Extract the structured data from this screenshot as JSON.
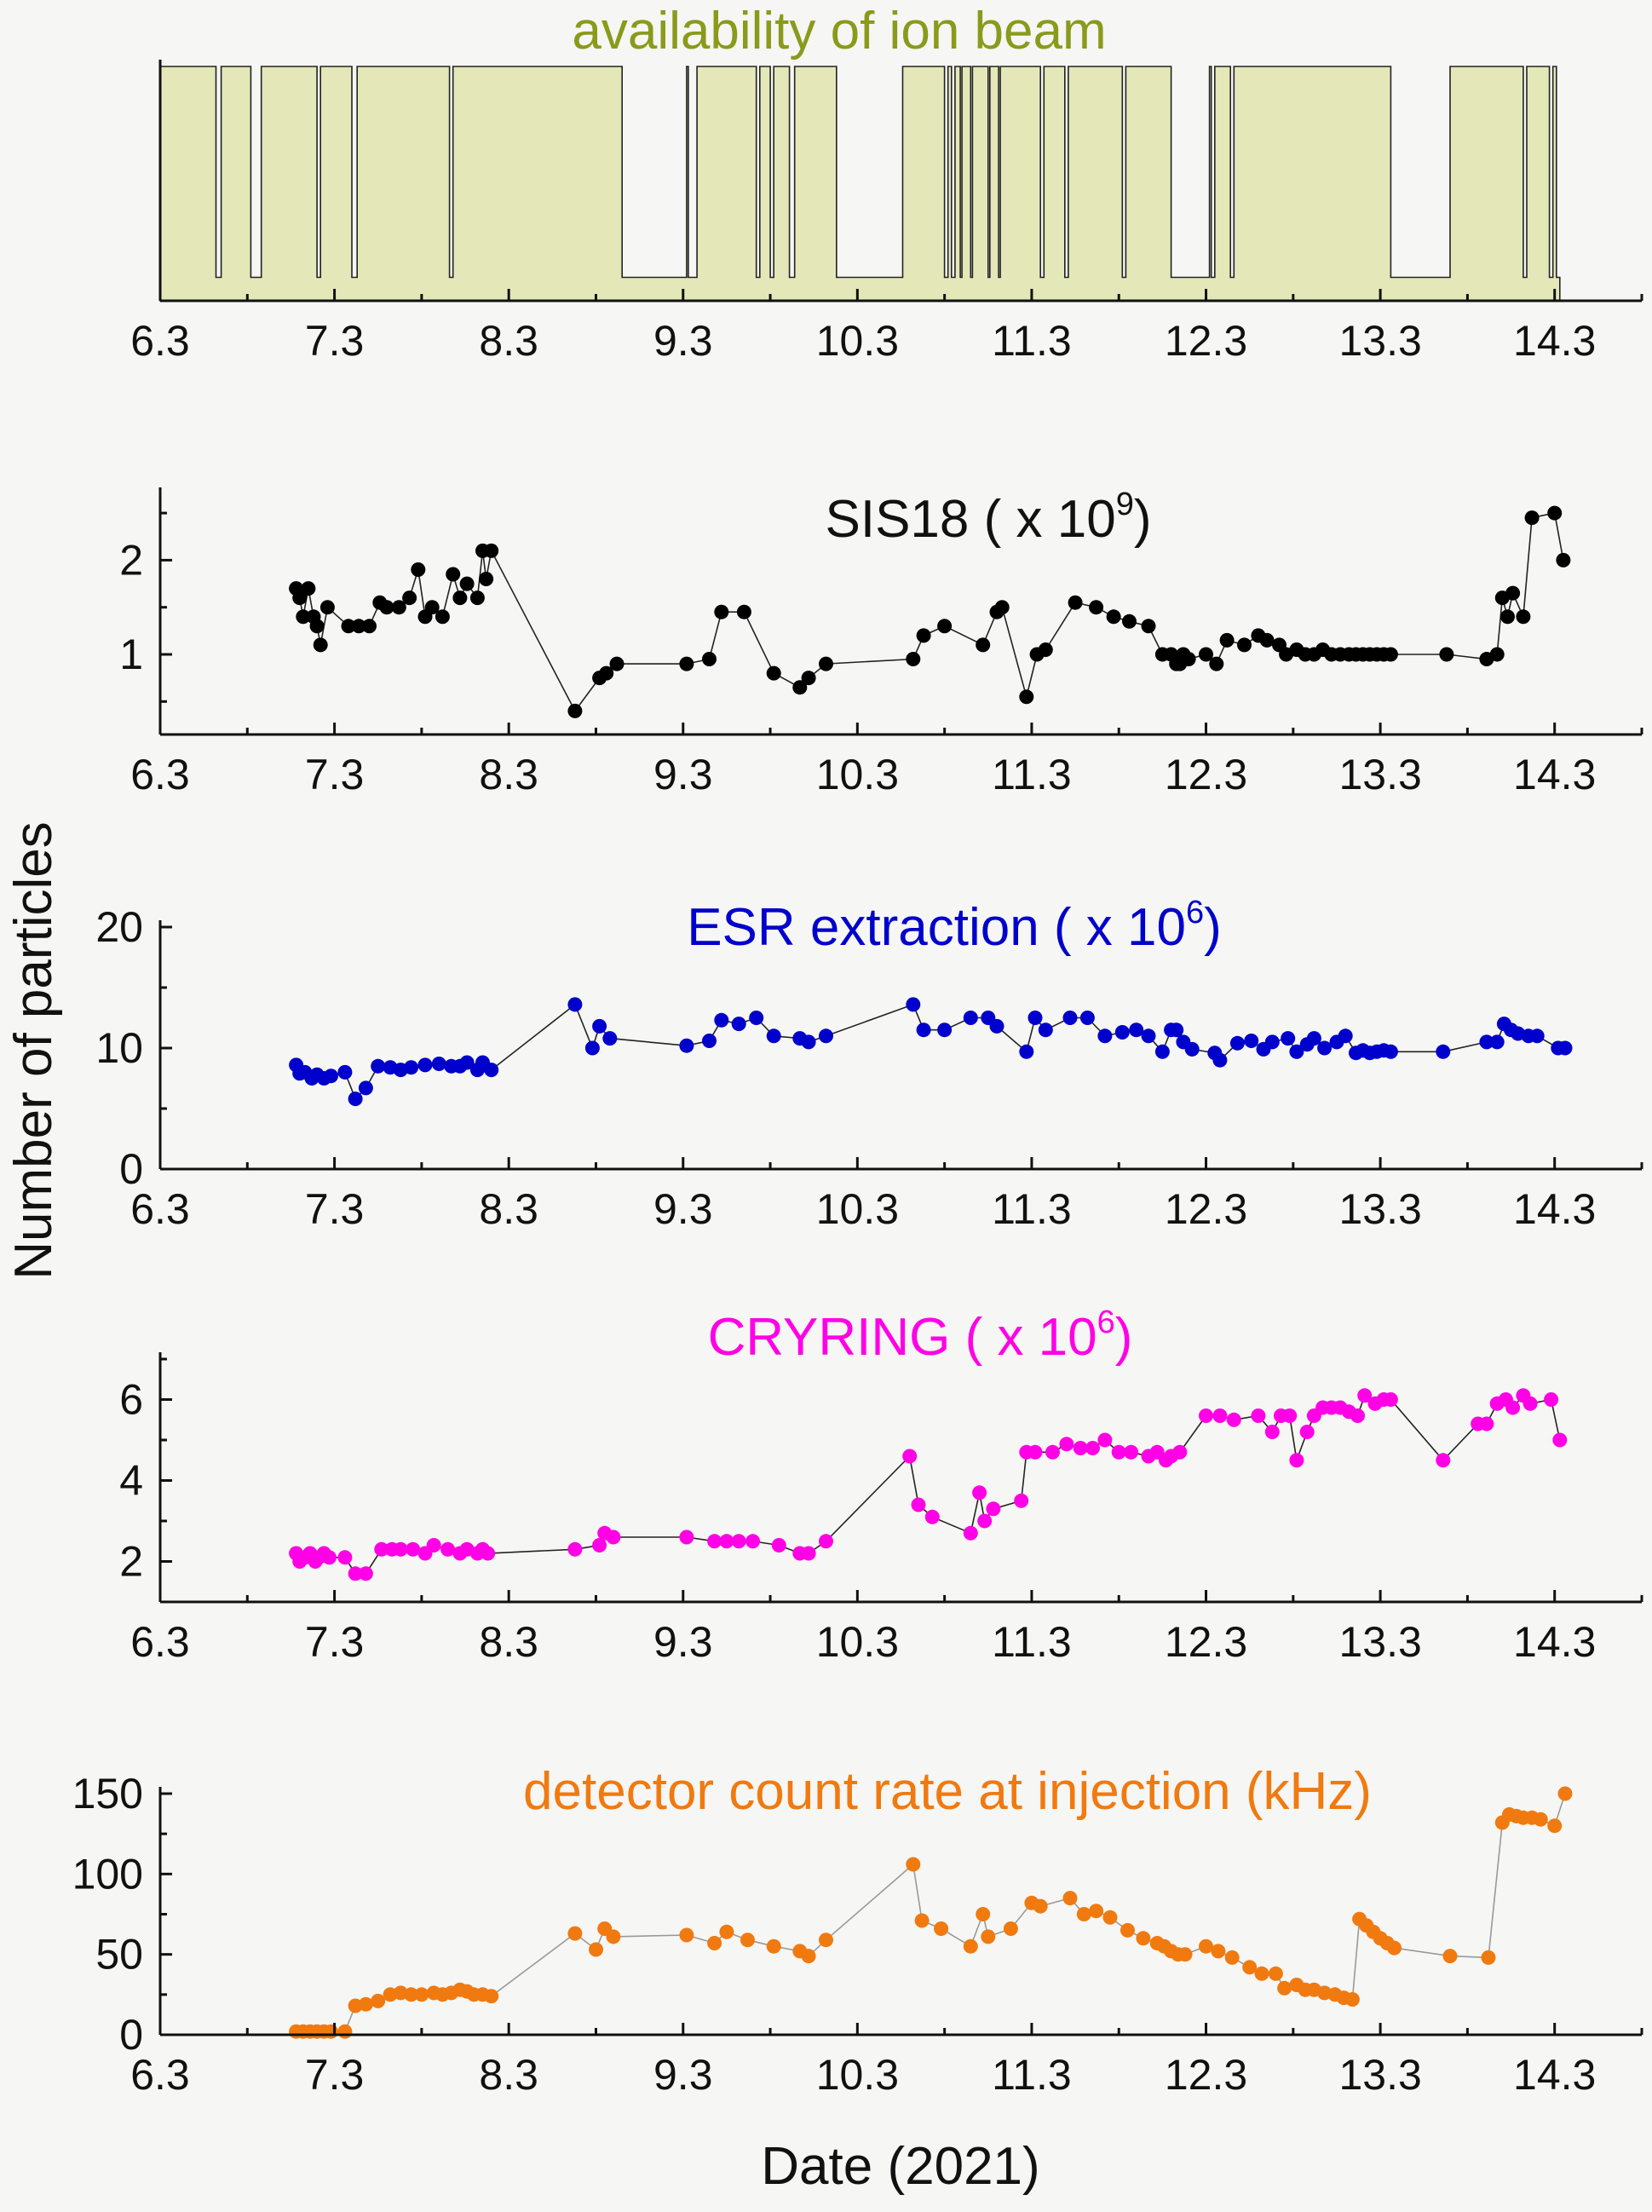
{
  "figure": {
    "ylabel": "Number of particles",
    "xlabel": "Date (2021)"
  },
  "chart_data": [
    {
      "type": "area",
      "title": "availability of ion beam",
      "color": "#8a9a1b",
      "fill": "#e4e8b8",
      "xlim": [
        6.3,
        14.8
      ],
      "ylim": [
        0,
        1
      ],
      "x_ticks": [
        "6.3",
        "7.3",
        "8.3",
        "9.3",
        "10.3",
        "11.3",
        "12.3",
        "13.3",
        "14.3"
      ],
      "y_ticks": [],
      "grid": false,
      "segments": [
        [
          6.3,
          6.62,
          1
        ],
        [
          6.62,
          6.65,
          0.1
        ],
        [
          6.65,
          6.82,
          1
        ],
        [
          6.82,
          6.88,
          0.1
        ],
        [
          6.88,
          7.2,
          1
        ],
        [
          7.2,
          7.22,
          0.1
        ],
        [
          7.22,
          7.4,
          1
        ],
        [
          7.4,
          7.43,
          0.1
        ],
        [
          7.43,
          7.96,
          1
        ],
        [
          7.96,
          7.98,
          0.1
        ],
        [
          7.98,
          8.95,
          1
        ],
        [
          8.95,
          9.32,
          0.1
        ],
        [
          9.32,
          9.33,
          1
        ],
        [
          9.33,
          9.38,
          0.1
        ],
        [
          9.38,
          9.72,
          1
        ],
        [
          9.72,
          9.74,
          0.1
        ],
        [
          9.74,
          9.8,
          1
        ],
        [
          9.8,
          9.82,
          0.1
        ],
        [
          9.82,
          9.91,
          1
        ],
        [
          9.91,
          9.94,
          0.1
        ],
        [
          9.94,
          10.18,
          1
        ],
        [
          10.18,
          10.56,
          0.1
        ],
        [
          10.56,
          10.8,
          1
        ],
        [
          10.8,
          10.82,
          0.1
        ],
        [
          10.82,
          10.84,
          1
        ],
        [
          10.84,
          10.86,
          0.1
        ],
        [
          10.86,
          10.89,
          1
        ],
        [
          10.89,
          10.9,
          0.1
        ],
        [
          10.9,
          10.95,
          1
        ],
        [
          10.95,
          10.96,
          0.1
        ],
        [
          10.96,
          11.05,
          1
        ],
        [
          11.05,
          11.06,
          0.1
        ],
        [
          11.06,
          11.11,
          1
        ],
        [
          11.11,
          11.12,
          0.1
        ],
        [
          11.12,
          11.35,
          1
        ],
        [
          11.35,
          11.37,
          0.1
        ],
        [
          11.37,
          11.49,
          1
        ],
        [
          11.49,
          11.51,
          0.1
        ],
        [
          11.51,
          11.82,
          1
        ],
        [
          11.82,
          11.84,
          0.1
        ],
        [
          11.84,
          12.1,
          1
        ],
        [
          12.1,
          12.32,
          0.1
        ],
        [
          12.32,
          12.33,
          1
        ],
        [
          12.33,
          12.35,
          0.1
        ],
        [
          12.35,
          12.44,
          1
        ],
        [
          12.44,
          12.46,
          0.1
        ],
        [
          12.46,
          13.36,
          1
        ],
        [
          13.36,
          13.7,
          0.1
        ],
        [
          13.7,
          14.12,
          1
        ],
        [
          14.12,
          14.14,
          0.1
        ],
        [
          14.14,
          14.27,
          1
        ],
        [
          14.27,
          14.29,
          0.1
        ],
        [
          14.29,
          14.31,
          1
        ],
        [
          14.31,
          14.33,
          0.1
        ]
      ]
    },
    {
      "type": "line",
      "title_text": "SIS18 ( x 10",
      "title_exp": "9",
      "title_close": ")",
      "color": "#000000",
      "xlim": [
        6.3,
        14.8
      ],
      "ylim": [
        0.15,
        2.7
      ],
      "x_ticks": [
        "6.3",
        "7.3",
        "8.3",
        "9.3",
        "10.3",
        "11.3",
        "12.3",
        "13.3",
        "14.3"
      ],
      "y_ticks": [
        1,
        2
      ],
      "grid": false,
      "series": [
        {
          "x": [
            7.08,
            7.1,
            7.12,
            7.15,
            7.18,
            7.2,
            7.22,
            7.26,
            7.38,
            7.44,
            7.5,
            7.56,
            7.6,
            7.67,
            7.73,
            7.78,
            7.82,
            7.86,
            7.92,
            7.98,
            8.02,
            8.06,
            8.12,
            8.15,
            8.17,
            8.2,
            8.68,
            8.82,
            8.86,
            8.92,
            9.32,
            9.45,
            9.52,
            9.65,
            9.82,
            9.97,
            10.02,
            10.12,
            10.62,
            10.68,
            10.8,
            11.02,
            11.1,
            11.13,
            11.27,
            11.33,
            11.38,
            11.55,
            11.67,
            11.77,
            11.86,
            11.97,
            12.05,
            12.1,
            12.13,
            12.15,
            12.17,
            12.2,
            12.3,
            12.36,
            12.42,
            12.52,
            12.6,
            12.65,
            12.72,
            12.76,
            12.82,
            12.87,
            12.92,
            12.97,
            13.02,
            13.07,
            13.12,
            13.16,
            13.2,
            13.24,
            13.28,
            13.32,
            13.36,
            13.68,
            13.91,
            13.97,
            14.0,
            14.03,
            14.06,
            14.12,
            14.17,
            14.3,
            14.35
          ],
          "values": [
            1.7,
            1.6,
            1.4,
            1.7,
            1.4,
            1.3,
            1.1,
            1.5,
            1.3,
            1.3,
            1.3,
            1.55,
            1.5,
            1.5,
            1.6,
            1.9,
            1.4,
            1.5,
            1.4,
            1.85,
            1.6,
            1.75,
            1.6,
            2.1,
            1.8,
            2.1,
            0.4,
            0.75,
            0.8,
            0.9,
            0.9,
            0.95,
            1.45,
            1.45,
            0.8,
            0.65,
            0.75,
            0.9,
            0.95,
            1.2,
            1.3,
            1.1,
            1.45,
            1.5,
            0.55,
            1.0,
            1.05,
            1.55,
            1.5,
            1.4,
            1.35,
            1.3,
            1.0,
            1.0,
            0.9,
            0.9,
            1.0,
            0.95,
            1.0,
            0.9,
            1.15,
            1.1,
            1.2,
            1.15,
            1.1,
            1.0,
            1.05,
            1.0,
            1.0,
            1.05,
            1.0,
            1.0,
            1.0,
            1.0,
            1.0,
            1.0,
            1.0,
            1.0,
            1.0,
            1.0,
            0.95,
            1.0,
            1.6,
            1.4,
            1.65,
            1.4,
            2.45,
            2.5,
            2.0
          ]
        }
      ]
    },
    {
      "type": "line",
      "title_text": "ESR extraction ( x 10",
      "title_exp": "6",
      "title_close": ")",
      "color": "#0000cc",
      "xlim": [
        6.3,
        14.8
      ],
      "ylim": [
        0,
        20
      ],
      "x_ticks": [
        "6.3",
        "7.3",
        "8.3",
        "9.3",
        "10.3",
        "11.3",
        "12.3",
        "13.3",
        "14.3"
      ],
      "y_ticks": [
        0,
        10,
        20
      ],
      "grid": false,
      "series": [
        {
          "x": [
            7.08,
            7.1,
            7.13,
            7.17,
            7.2,
            7.24,
            7.28,
            7.36,
            7.42,
            7.48,
            7.55,
            7.62,
            7.68,
            7.74,
            7.82,
            7.9,
            7.97,
            8.02,
            8.06,
            8.12,
            8.15,
            8.2,
            8.68,
            8.78,
            8.82,
            8.88,
            9.32,
            9.45,
            9.52,
            9.62,
            9.72,
            9.82,
            9.97,
            10.02,
            10.12,
            10.62,
            10.68,
            10.8,
            10.95,
            11.05,
            11.1,
            11.27,
            11.32,
            11.38,
            11.52,
            11.62,
            11.72,
            11.82,
            11.9,
            11.97,
            12.05,
            12.1,
            12.13,
            12.17,
            12.22,
            12.35,
            12.38,
            12.48,
            12.56,
            12.63,
            12.68,
            12.77,
            12.82,
            12.88,
            12.92,
            12.98,
            13.05,
            13.1,
            13.16,
            13.2,
            13.24,
            13.28,
            13.32,
            13.36,
            13.66,
            13.91,
            13.97,
            14.01,
            14.05,
            14.09,
            14.15,
            14.2,
            14.32,
            14.36
          ],
          "values": [
            8.6,
            7.9,
            8.0,
            7.5,
            7.8,
            7.5,
            7.7,
            8.0,
            5.8,
            6.7,
            8.5,
            8.4,
            8.2,
            8.4,
            8.6,
            8.7,
            8.5,
            8.5,
            8.8,
            8.2,
            8.8,
            8.2,
            13.6,
            10.0,
            11.8,
            10.8,
            10.2,
            10.6,
            12.3,
            12.0,
            12.5,
            11.0,
            10.8,
            10.5,
            11.0,
            13.6,
            11.5,
            11.5,
            12.5,
            12.5,
            11.8,
            9.7,
            12.5,
            11.5,
            12.5,
            12.5,
            11.0,
            11.3,
            11.5,
            11.0,
            9.7,
            11.5,
            11.5,
            10.5,
            9.9,
            9.6,
            9.0,
            10.4,
            10.6,
            9.9,
            10.5,
            10.8,
            9.7,
            10.3,
            10.8,
            10.0,
            10.5,
            11.0,
            9.6,
            9.8,
            9.6,
            9.7,
            9.8,
            9.7,
            9.7,
            10.5,
            10.5,
            12.0,
            11.5,
            11.2,
            11.0,
            11.0,
            10.0,
            10.0
          ]
        }
      ]
    },
    {
      "type": "line",
      "title_text": "CRYRING ( x 10",
      "title_exp": "6",
      "title_close": ")",
      "color": "#ff00e6",
      "xlim": [
        6.3,
        14.8
      ],
      "ylim": [
        1,
        7
      ],
      "x_ticks": [
        "6.3",
        "7.3",
        "8.3",
        "9.3",
        "10.3",
        "11.3",
        "12.3",
        "13.3",
        "14.3"
      ],
      "y_ticks": [
        2,
        4,
        6
      ],
      "grid": false,
      "series": [
        {
          "x": [
            7.08,
            7.1,
            7.13,
            7.16,
            7.19,
            7.21,
            7.24,
            7.27,
            7.36,
            7.42,
            7.48,
            7.57,
            7.63,
            7.68,
            7.75,
            7.82,
            7.87,
            7.95,
            8.02,
            8.06,
            8.12,
            8.15,
            8.18,
            8.68,
            8.82,
            8.85,
            8.9,
            9.32,
            9.48,
            9.55,
            9.62,
            9.7,
            9.85,
            9.97,
            10.02,
            10.12,
            10.6,
            10.65,
            10.73,
            10.95,
            11.0,
            11.03,
            11.08,
            11.24,
            11.27,
            11.32,
            11.42,
            11.5,
            11.58,
            11.65,
            11.72,
            11.8,
            11.87,
            11.97,
            12.02,
            12.07,
            12.1,
            12.15,
            12.3,
            12.38,
            12.46,
            12.6,
            12.68,
            12.73,
            12.78,
            12.82,
            12.88,
            12.92,
            12.97,
            13.02,
            13.07,
            13.12,
            13.17,
            13.21,
            13.27,
            13.32,
            13.36,
            13.66,
            13.86,
            13.91,
            13.97,
            14.02,
            14.06,
            14.12,
            14.16,
            14.28,
            14.33
          ],
          "values": [
            2.2,
            2.0,
            2.1,
            2.2,
            2.0,
            2.1,
            2.2,
            2.1,
            2.1,
            1.7,
            1.7,
            2.3,
            2.3,
            2.3,
            2.3,
            2.2,
            2.4,
            2.3,
            2.2,
            2.3,
            2.2,
            2.3,
            2.2,
            2.3,
            2.4,
            2.7,
            2.6,
            2.6,
            2.5,
            2.5,
            2.5,
            2.5,
            2.4,
            2.2,
            2.2,
            2.5,
            4.6,
            3.4,
            3.1,
            2.7,
            3.7,
            3.0,
            3.3,
            3.5,
            4.7,
            4.7,
            4.7,
            4.9,
            4.8,
            4.8,
            5.0,
            4.7,
            4.7,
            4.6,
            4.7,
            4.5,
            4.6,
            4.7,
            5.6,
            5.6,
            5.5,
            5.6,
            5.2,
            5.6,
            5.6,
            4.5,
            5.2,
            5.6,
            5.8,
            5.8,
            5.8,
            5.7,
            5.6,
            6.1,
            5.9,
            6.0,
            6.0,
            4.5,
            5.4,
            5.4,
            5.9,
            6.0,
            5.8,
            6.1,
            5.9,
            6.0,
            5.0
          ]
        }
      ]
    },
    {
      "type": "line",
      "title": "detector count rate at injection (kHz)",
      "color": "#f07a10",
      "line_color": "#999999",
      "xlim": [
        6.3,
        14.8
      ],
      "ylim": [
        0,
        150
      ],
      "x_ticks": [
        "6.3",
        "7.3",
        "8.3",
        "9.3",
        "10.3",
        "11.3",
        "12.3",
        "13.3",
        "14.3"
      ],
      "y_ticks": [
        0,
        50,
        100,
        150
      ],
      "grid": false,
      "series": [
        {
          "x": [
            7.08,
            7.12,
            7.16,
            7.2,
            7.24,
            7.28,
            7.36,
            7.42,
            7.48,
            7.55,
            7.62,
            7.68,
            7.74,
            7.8,
            7.87,
            7.92,
            7.97,
            8.02,
            8.06,
            8.1,
            8.15,
            8.2,
            8.68,
            8.8,
            8.85,
            8.9,
            9.32,
            9.48,
            9.55,
            9.67,
            9.82,
            9.97,
            10.02,
            10.12,
            10.62,
            10.67,
            10.78,
            10.95,
            11.02,
            11.05,
            11.18,
            11.3,
            11.35,
            11.52,
            11.6,
            11.67,
            11.75,
            11.85,
            11.94,
            12.02,
            12.06,
            12.1,
            12.14,
            12.18,
            12.3,
            12.37,
            12.45,
            12.55,
            12.62,
            12.7,
            12.75,
            12.82,
            12.87,
            12.92,
            12.98,
            13.04,
            13.09,
            13.14,
            13.18,
            13.22,
            13.26,
            13.3,
            13.34,
            13.38,
            13.7,
            13.92,
            14.0,
            14.04,
            14.08,
            14.12,
            14.17,
            14.22,
            14.3,
            14.36
          ],
          "values": [
            2,
            2,
            2,
            2,
            2,
            2,
            2,
            18,
            19,
            21,
            25,
            26,
            25,
            25,
            26,
            25,
            26,
            28,
            27,
            25,
            25,
            24,
            63,
            53,
            66,
            61,
            62,
            57,
            64,
            59,
            55,
            52,
            49,
            59,
            106,
            71,
            66,
            55,
            75,
            61,
            66,
            82,
            80,
            85,
            75,
            77,
            73,
            65,
            60,
            57,
            55,
            52,
            50,
            50,
            55,
            52,
            48,
            42,
            38,
            38,
            29,
            31,
            28,
            28,
            26,
            25,
            23,
            22,
            72,
            68,
            64,
            60,
            57,
            54,
            49,
            48,
            132,
            137,
            136,
            135,
            135,
            134,
            130,
            150
          ]
        }
      ]
    }
  ]
}
